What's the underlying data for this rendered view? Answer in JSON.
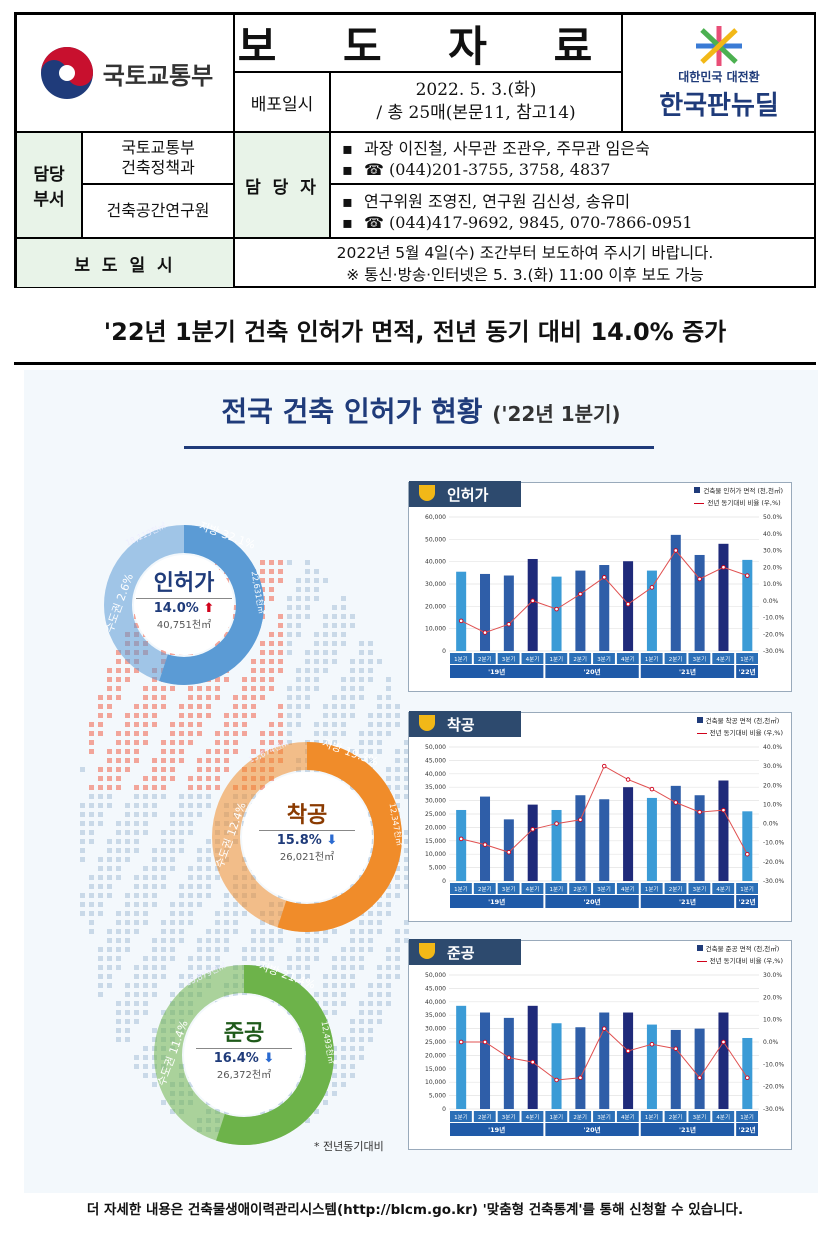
{
  "header": {
    "ministry": "국토교통부",
    "title": "보 도 자 료",
    "release_label": "배포일시",
    "release_date": "2022. 5. 3.(화)",
    "pages": "/ 총 25매(본문11, 참고14)",
    "brand_small": "대한민국 대전환",
    "brand_big": "한국판뉴딜",
    "dept_label": "담당\n부서",
    "dept1": "국토교통부\n건축정책과",
    "dept2": "건축공간연구원",
    "contact_label": "담 당 자",
    "contact1_names": "과장 이진철, 사무관 조관우, 주무관 임은숙",
    "contact1_phone": "☎ (044)201-3755, 3758, 4837",
    "contact2_names": "연구위원 조영진, 연구원 김신성, 송유미",
    "contact2_phone": "☎ (044)417-9692, 9845, 070-7866-0951",
    "embargo_label": "보 도 일 시",
    "embargo1": "2022년 5월 4일(수) 조간부터 보도하여 주시기 바랍니다.",
    "embargo2": "※ 통신·방송·인터넷은 5. 3.(화) 11:00 이후 보도 가능"
  },
  "headline": "'22년 1분기 건축 인허가 면적, 전년 동기 대비 14.0% 증가",
  "infographic": {
    "title": "전국 건축 인허가 현황",
    "period": "('22년 1분기)",
    "note": "* 전년동기대비",
    "donuts": [
      {
        "name": "인허가",
        "rate": "14.0%",
        "dir": "up",
        "total": "40,751천㎡",
        "capital": "수도권 2.6%",
        "capital_area": "18,119천㎡",
        "local": "지방 32.1%",
        "local_area": "22,631천㎡",
        "color": "#5b9bd5"
      },
      {
        "name": "착공",
        "rate": "15.8%",
        "dir": "down",
        "total": "26,021천㎡",
        "capital": "수도권 12.4%",
        "capital_area": "13,674천㎡",
        "local": "지방 19.3%",
        "local_area": "12,347천㎡",
        "color": "#f08c2a"
      },
      {
        "name": "준공",
        "rate": "16.4%",
        "dir": "down",
        "total": "26,372천㎡",
        "capital": "수도권 11.4%",
        "capital_area": "13,879천㎡",
        "local": "지방 21.4%",
        "local_area": "12,493천㎡",
        "color": "#6db34a"
      }
    ]
  },
  "chart_data": [
    {
      "type": "bar",
      "tab": "인허가",
      "legend_bar": "건축물 인허가 면적 (천,천㎡)",
      "legend_line": "전년 동기대비 비율 (우,%)",
      "categories": [
        "1분기",
        "2분기",
        "3분기",
        "4분기",
        "1분기",
        "2분기",
        "3분기",
        "4분기",
        "1분기",
        "2분기",
        "3분기",
        "4분기",
        "1분기"
      ],
      "years": [
        "'19년",
        "'20년",
        "'21년",
        "'22년"
      ],
      "values": [
        35500,
        34500,
        33800,
        41200,
        33300,
        36000,
        38500,
        40200,
        36000,
        52000,
        43000,
        48000,
        40800
      ],
      "pct": [
        -12,
        -19,
        -14,
        0,
        -5,
        4,
        14,
        -2,
        8,
        30,
        13,
        20,
        15
      ],
      "ylim": [
        0,
        60000
      ],
      "y2lim": [
        -30,
        50
      ],
      "yticks": [
        "60,000",
        "50,000",
        "40,000",
        "30,000",
        "20,000",
        "10,000",
        "0"
      ],
      "y2ticks": [
        "50.0%",
        "40.0%",
        "30.0%",
        "20.0%",
        "10.0%",
        "0.0%",
        "-10.0%",
        "-20.0%",
        "-30.0%"
      ]
    },
    {
      "type": "bar",
      "tab": "착공",
      "legend_bar": "건축물 착공 면적 (천,천㎡)",
      "legend_line": "전년 동기대비 비율 (우,%)",
      "categories": [
        "1분기",
        "2분기",
        "3분기",
        "4분기",
        "1분기",
        "2분기",
        "3분기",
        "4분기",
        "1분기",
        "2분기",
        "3분기",
        "4분기",
        "1분기"
      ],
      "years": [
        "'19년",
        "'20년",
        "'21년",
        "'22년"
      ],
      "values": [
        26500,
        31500,
        23000,
        28500,
        26500,
        32000,
        30500,
        35000,
        31000,
        35500,
        32000,
        37500,
        26000
      ],
      "pct": [
        -8,
        -11,
        -15,
        -3,
        0,
        2,
        30,
        23,
        18,
        11,
        6,
        7,
        -16
      ],
      "ylim": [
        0,
        50000
      ],
      "y2lim": [
        -30,
        40
      ],
      "yticks": [
        "50,000",
        "45,000",
        "40,000",
        "35,000",
        "30,000",
        "25,000",
        "20,000",
        "15,000",
        "10,000",
        "5,000",
        "0"
      ],
      "y2ticks": [
        "40.0%",
        "30.0%",
        "20.0%",
        "10.0%",
        "0.0%",
        "-10.0%",
        "-20.0%",
        "-30.0%"
      ]
    },
    {
      "type": "bar",
      "tab": "준공",
      "legend_bar": "건축물 준공 면적 (천,천㎡)",
      "legend_line": "전년 동기대비 비율 (우,%)",
      "categories": [
        "1분기",
        "2분기",
        "3분기",
        "4분기",
        "1분기",
        "2분기",
        "3분기",
        "4분기",
        "1분기",
        "2분기",
        "3분기",
        "4분기",
        "1분기"
      ],
      "years": [
        "'19년",
        "'20년",
        "'21년",
        "'22년"
      ],
      "values": [
        38500,
        36000,
        34000,
        38500,
        32000,
        30500,
        36000,
        36000,
        31500,
        29500,
        30000,
        36000,
        26500
      ],
      "pct": [
        0,
        0,
        -7,
        -9,
        -17,
        -16,
        6,
        -4,
        -1,
        -3,
        -16,
        0,
        -16
      ],
      "ylim": [
        0,
        50000
      ],
      "y2lim": [
        -30,
        30
      ],
      "yticks": [
        "50,000",
        "45,000",
        "40,000",
        "35,000",
        "30,000",
        "25,000",
        "20,000",
        "15,000",
        "10,000",
        "5,000",
        "0"
      ],
      "y2ticks": [
        "30.0%",
        "20.0%",
        "10.0%",
        "0.0%",
        "-10.0%",
        "-20.0%",
        "-30.0%"
      ]
    }
  ],
  "footer": "더 자세한 내용은 건축물생애이력관리시스템(http://blcm.go.kr) '맞춤형 건축통계'를 통해 신청할 수 있습니다."
}
